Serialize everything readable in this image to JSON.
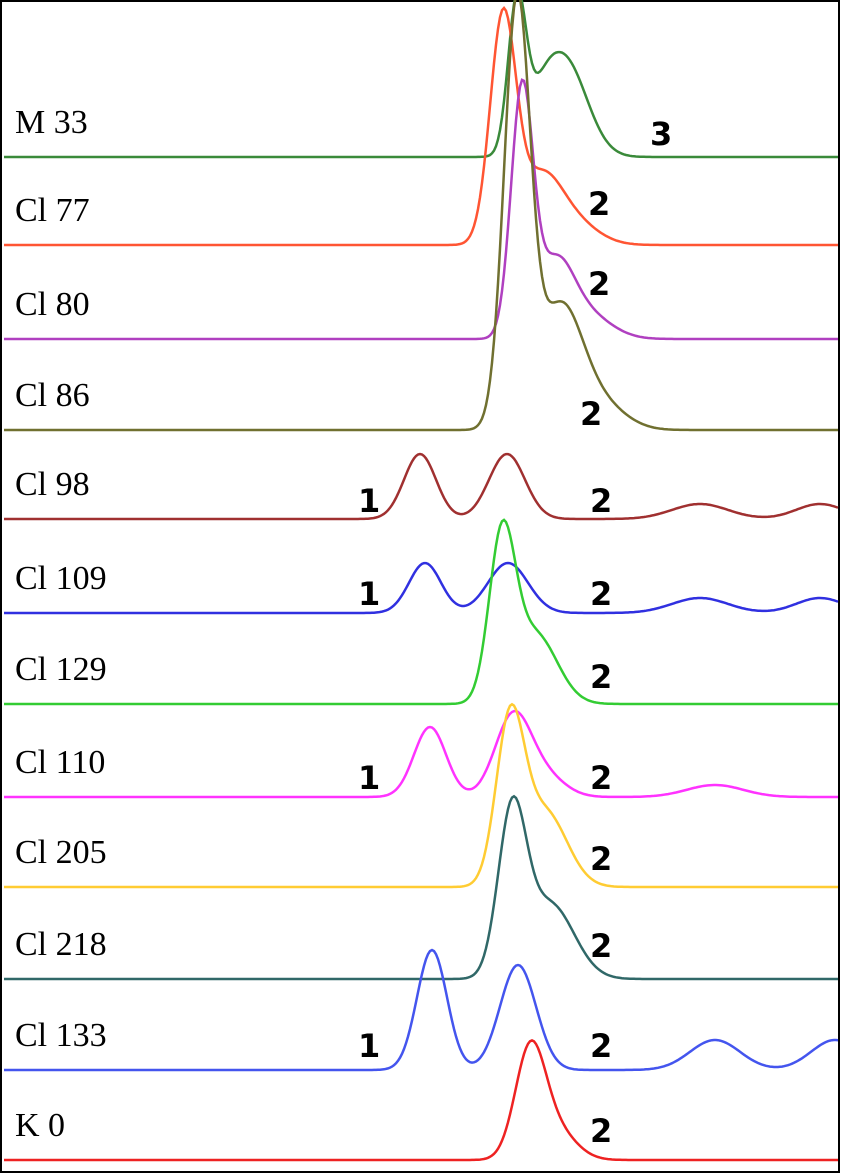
{
  "traces": [
    {
      "label": "M 33",
      "color": "#3a8a3a",
      "peaks": [
        "3"
      ]
    },
    {
      "label": "Cl 77",
      "color": "#ff5533",
      "peaks": [
        "2"
      ]
    },
    {
      "label": "Cl 80",
      "color": "#b040c0",
      "peaks": [
        "2"
      ]
    },
    {
      "label": "Cl 86",
      "color": "#707030",
      "peaks": [
        "2"
      ]
    },
    {
      "label": "Cl 98",
      "color": "#a03030",
      "peaks": [
        "1",
        "2"
      ]
    },
    {
      "label": "Cl 109",
      "color": "#3030e0",
      "peaks": [
        "1",
        "2"
      ]
    },
    {
      "label": "Cl 129",
      "color": "#33cc33",
      "peaks": [
        "2"
      ]
    },
    {
      "label": "Cl 110",
      "color": "#ff33ff",
      "peaks": [
        "1",
        "2"
      ]
    },
    {
      "label": "Cl 205",
      "color": "#ffcc33",
      "peaks": [
        "2"
      ]
    },
    {
      "label": "Cl 218",
      "color": "#306868",
      "peaks": [
        "2"
      ]
    },
    {
      "label": "Cl 133",
      "color": "#4455ee",
      "peaks": [
        "1",
        "2"
      ]
    },
    {
      "label": "K 0",
      "color": "#ee2222",
      "peaks": [
        "2"
      ]
    }
  ]
}
